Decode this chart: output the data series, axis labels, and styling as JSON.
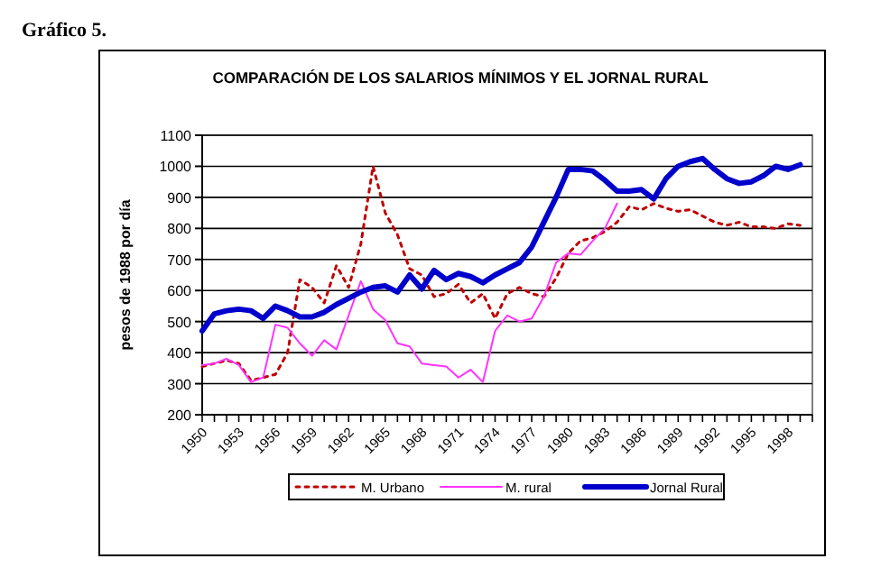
{
  "chart_data": {
    "type": "line",
    "title": "COMPARACIÓN DE LOS SALARIOS MÍNIMOS Y EL JORNAL RURAL",
    "annotations": [
      "Gráfico 5."
    ],
    "ylabel": "pesos de 1988 por día",
    "x": [
      1950,
      1951,
      1952,
      1953,
      1954,
      1955,
      1956,
      1957,
      1958,
      1959,
      1960,
      1961,
      1962,
      1963,
      1964,
      1965,
      1966,
      1967,
      1968,
      1969,
      1970,
      1971,
      1972,
      1973,
      1974,
      1975,
      1976,
      1977,
      1978,
      1979,
      1980,
      1981,
      1982,
      1983,
      1984,
      1985,
      1986,
      1987,
      1988,
      1989,
      1990,
      1991,
      1992,
      1993,
      1994,
      1995,
      1996,
      1997,
      1998,
      1999
    ],
    "xlim": [
      1950,
      2000
    ],
    "xticks": [
      1950,
      1953,
      1956,
      1959,
      1962,
      1965,
      1968,
      1971,
      1974,
      1977,
      1980,
      1983,
      1986,
      1989,
      1992,
      1995,
      1998
    ],
    "ylim": [
      200,
      1100
    ],
    "yticks": [
      200,
      300,
      400,
      500,
      600,
      700,
      800,
      900,
      1000,
      1100
    ],
    "grid": "y",
    "legend": "bottom",
    "series": [
      {
        "name": "M. Urbano",
        "color": "#c00000",
        "line_style": "dotted",
        "values": [
          355,
          365,
          375,
          365,
          310,
          320,
          330,
          400,
          635,
          610,
          560,
          680,
          610,
          750,
          1000,
          850,
          780,
          670,
          650,
          580,
          590,
          620,
          560,
          590,
          510,
          590,
          610,
          590,
          580,
          640,
          720,
          760,
          770,
          790,
          820,
          870,
          860,
          880,
          865,
          855,
          860,
          840,
          820,
          810,
          820,
          805,
          805,
          800,
          815,
          810
        ]
      },
      {
        "name": "M. rural",
        "color": "#ff33ff",
        "line_style": "solid",
        "values": [
          360,
          365,
          380,
          360,
          305,
          320,
          490,
          480,
          430,
          390,
          440,
          410,
          520,
          630,
          540,
          505,
          430,
          420,
          365,
          360,
          355,
          320,
          345,
          305,
          470,
          520,
          500,
          510,
          580,
          690,
          720,
          715,
          760,
          800,
          880,
          null,
          null,
          null,
          null,
          null,
          null,
          null,
          null,
          null,
          null,
          null,
          null,
          null,
          null,
          null
        ]
      },
      {
        "name": "Jornal Rural",
        "color": "#0000cc",
        "line_style": "solid",
        "values": [
          470,
          525,
          535,
          540,
          535,
          510,
          550,
          535,
          515,
          515,
          530,
          555,
          575,
          595,
          610,
          615,
          595,
          650,
          605,
          665,
          635,
          655,
          645,
          625,
          650,
          670,
          690,
          740,
          820,
          900,
          990,
          990,
          985,
          955,
          920,
          920,
          925,
          895,
          960,
          1000,
          1015,
          1025,
          990,
          960,
          945,
          950,
          970,
          1000,
          990,
          1005
        ]
      }
    ]
  }
}
